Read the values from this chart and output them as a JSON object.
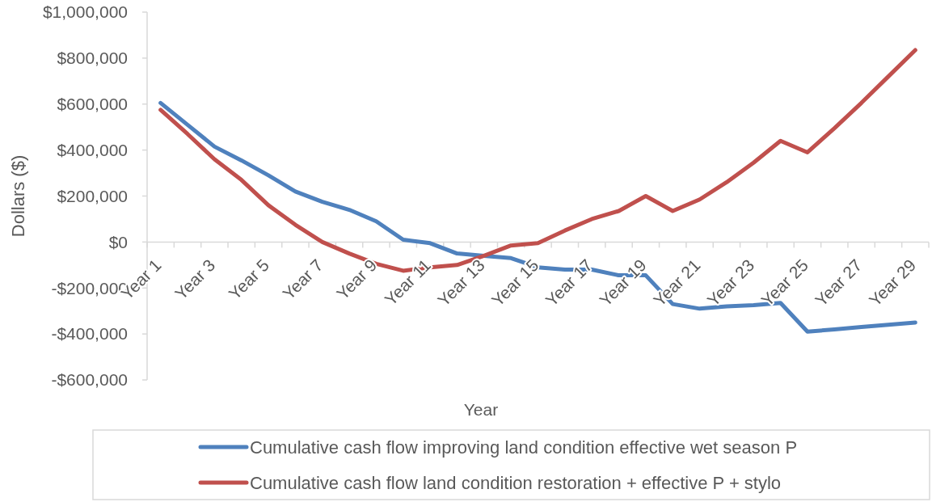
{
  "chart_data": {
    "type": "line",
    "xlabel": "Year",
    "ylabel": "Dollars ($)",
    "categories": [
      "Year 1",
      null,
      "Year 3",
      null,
      "Year 5",
      null,
      "Year 7",
      null,
      "Year 9",
      null,
      "Year 11",
      null,
      "Year 13",
      null,
      "Year 15",
      null,
      "Year 17",
      null,
      "Year 19",
      null,
      "Year 21",
      null,
      "Year 23",
      null,
      "Year 25",
      null,
      "Year 27",
      null,
      "Year 29"
    ],
    "series": [
      {
        "name": "Cumulative cash flow improving land condition effective wet season P",
        "color": "#4f81bd",
        "values": [
          605000,
          510000,
          415000,
          355000,
          290000,
          220000,
          175000,
          140000,
          90000,
          10000,
          -5000,
          -50000,
          -60000,
          -70000,
          -110000,
          -120000,
          -120000,
          -145000,
          -145000,
          -270000,
          -290000,
          -280000,
          -275000,
          -265000,
          -390000,
          -380000,
          -370000,
          -360000,
          -350000
        ]
      },
      {
        "name": "Cumulative cash flow land condition restoration + effective P + stylo",
        "color": "#c0504d",
        "values": [
          575000,
          470000,
          360000,
          270000,
          160000,
          75000,
          0,
          -50000,
          -95000,
          -125000,
          -110000,
          -100000,
          -60000,
          -15000,
          -5000,
          50000,
          100000,
          135000,
          200000,
          135000,
          185000,
          260000,
          345000,
          440000,
          390000,
          495000,
          605000,
          720000,
          835000
        ]
      }
    ],
    "ylim": [
      -600000,
      1000000
    ],
    "yticks": [
      {
        "value": -600000,
        "label": "-$600,000"
      },
      {
        "value": -400000,
        "label": "-$400,000"
      },
      {
        "value": -200000,
        "label": "-$200,000"
      },
      {
        "value": 0,
        "label": "$0"
      },
      {
        "value": 200000,
        "label": "$200,000"
      },
      {
        "value": 400000,
        "label": "$400,000"
      },
      {
        "value": 600000,
        "label": "$600,000"
      },
      {
        "value": 800000,
        "label": "$800,000"
      },
      {
        "value": 1000000,
        "label": "$1,000,000"
      }
    ],
    "legend": "bottom",
    "line_style": "solid"
  }
}
